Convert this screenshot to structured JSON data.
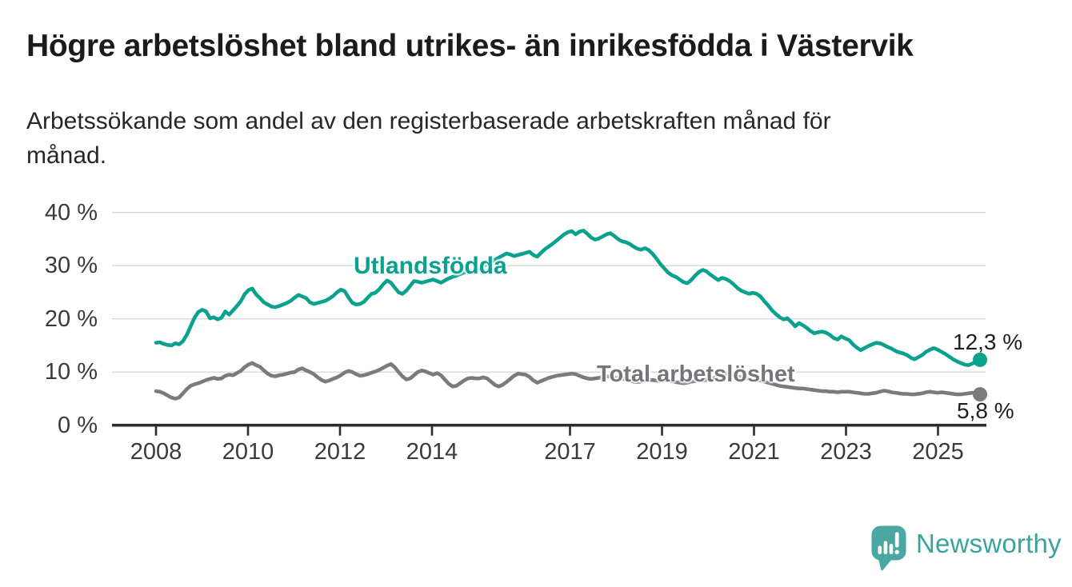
{
  "header": {
    "title": "Högre arbetslöshet bland utrikes- än inrikesfödda i Västervik",
    "subtitle_line1": "Arbetssökande som andel av den registerbaserade arbetskraften månad för",
    "subtitle_line2": "månad."
  },
  "colors": {
    "background": "#ffffff",
    "title_text": "#1b1b1b",
    "tick_text": "#3a3a3a",
    "grid": "#d8d8d8",
    "axis": "#2d2d2d",
    "series_utlandsfodda": "#0aa18f",
    "series_total": "#7a7b7f",
    "total_label_text": "#75767a",
    "value_label_text": "#1f1f1f",
    "logo_bubble": "#4ba7a1",
    "logo_text": "#3ba39b"
  },
  "chart_data": {
    "type": "line",
    "title": "Högre arbetslöshet bland utrikes- än inrikesfödda i Västervik",
    "subtitle": "Arbetssökande som andel av den registerbaserade arbetskraften månad för månad.",
    "x_unit": "month",
    "x_monthly_from": "2008-01",
    "x_monthly_to": "2025-11",
    "ylim": [
      0,
      42
    ],
    "grid": "horizontal",
    "y_ticks": [
      "0 %",
      "10 %",
      "20 %",
      "30 %",
      "40 %"
    ],
    "x_tick_labels": [
      "2008",
      "2010",
      "2012",
      "2014",
      "2017",
      "2019",
      "2021",
      "2023",
      "2025"
    ],
    "x_tick_years": [
      2008,
      2010,
      2012,
      2014,
      2017,
      2019,
      2021,
      2023,
      2025
    ],
    "legend_position": "inline-labels",
    "series": [
      {
        "name": "Utlandsfödda",
        "color": "#0aa18f",
        "end_label": "12,3 %",
        "end_value": 12.3,
        "values": [
          15.5,
          15.6,
          15.3,
          15.1,
          15.0,
          15.4,
          15.2,
          15.8,
          17.0,
          18.6,
          20.2,
          21.3,
          21.7,
          21.4,
          20.1,
          20.3,
          19.9,
          20.2,
          21.4,
          20.8,
          21.6,
          22.4,
          23.3,
          24.6,
          25.4,
          25.7,
          24.6,
          23.9,
          23.1,
          22.7,
          22.3,
          22.2,
          22.4,
          22.7,
          23.0,
          23.4,
          24.0,
          24.5,
          24.2,
          23.9,
          23.1,
          22.8,
          23.0,
          23.2,
          23.4,
          23.8,
          24.3,
          25.0,
          25.5,
          25.2,
          24.0,
          23.0,
          22.7,
          22.8,
          23.2,
          24.0,
          24.7,
          24.9,
          25.6,
          26.5,
          27.2,
          26.8,
          25.9,
          25.0,
          24.7,
          25.3,
          26.2,
          27.1,
          27.0,
          26.8,
          27.0,
          27.2,
          27.4,
          27.1,
          26.8,
          27.2,
          27.6,
          27.9,
          28.1,
          28.4,
          28.7,
          28.9,
          29.0,
          29.2,
          29.5,
          29.9,
          30.3,
          30.7,
          31.1,
          31.5,
          31.9,
          32.3,
          32.1,
          31.8,
          32.0,
          32.2,
          32.4,
          32.6,
          32.0,
          31.7,
          32.4,
          33.1,
          33.6,
          34.1,
          34.7,
          35.3,
          35.9,
          36.3,
          36.5,
          35.9,
          36.4,
          36.6,
          36.0,
          35.3,
          34.9,
          35.1,
          35.5,
          35.9,
          36.1,
          35.6,
          35.0,
          34.6,
          34.4,
          34.1,
          33.6,
          33.2,
          33.0,
          33.3,
          32.9,
          32.2,
          31.3,
          30.3,
          29.5,
          28.7,
          28.2,
          27.9,
          27.4,
          26.9,
          26.7,
          27.3,
          28.1,
          28.8,
          29.2,
          28.9,
          28.3,
          27.8,
          27.3,
          27.7,
          27.5,
          27.1,
          26.5,
          25.8,
          25.3,
          25.0,
          24.7,
          24.9,
          24.7,
          24.2,
          23.3,
          22.5,
          21.6,
          20.9,
          20.3,
          19.9,
          20.1,
          19.4,
          18.6,
          19.2,
          18.8,
          18.3,
          17.7,
          17.3,
          17.5,
          17.6,
          17.4,
          17.0,
          16.4,
          16.1,
          16.7,
          16.3,
          16.0,
          15.2,
          14.6,
          14.1,
          14.5,
          14.9,
          15.2,
          15.5,
          15.4,
          15.1,
          14.7,
          14.4,
          14.0,
          13.7,
          13.5,
          13.2,
          12.7,
          12.4,
          12.8,
          13.2,
          13.8,
          14.2,
          14.5,
          14.2,
          13.8,
          13.4,
          12.9,
          12.4,
          12.0,
          11.7,
          11.4,
          11.3,
          11.6,
          11.9,
          12.3
        ]
      },
      {
        "name": "Total arbetslöshet",
        "color": "#7a7b7f",
        "end_label": "5,8 %",
        "end_value": 5.8,
        "values": [
          6.4,
          6.3,
          6.0,
          5.6,
          5.2,
          5.0,
          5.2,
          6.0,
          6.8,
          7.4,
          7.7,
          7.9,
          8.2,
          8.5,
          8.7,
          8.9,
          8.7,
          8.8,
          9.3,
          9.5,
          9.4,
          9.8,
          10.2,
          10.9,
          11.4,
          11.7,
          11.3,
          11.0,
          10.3,
          9.7,
          9.3,
          9.2,
          9.4,
          9.5,
          9.7,
          9.9,
          10.0,
          10.5,
          10.7,
          10.3,
          10.0,
          9.6,
          9.0,
          8.5,
          8.2,
          8.4,
          8.7,
          9.0,
          9.4,
          9.9,
          10.2,
          10.0,
          9.6,
          9.3,
          9.4,
          9.6,
          9.9,
          10.1,
          10.4,
          10.8,
          11.2,
          11.5,
          10.9,
          10.0,
          9.2,
          8.6,
          8.8,
          9.4,
          10.0,
          10.3,
          10.1,
          9.8,
          9.5,
          9.8,
          9.4,
          8.6,
          7.8,
          7.3,
          7.4,
          7.9,
          8.4,
          8.8,
          8.9,
          8.8,
          8.8,
          9.0,
          8.8,
          8.2,
          7.6,
          7.3,
          7.6,
          8.1,
          8.7,
          9.3,
          9.7,
          9.6,
          9.5,
          9.1,
          8.4,
          8.0,
          8.3,
          8.6,
          8.9,
          9.1,
          9.3,
          9.4,
          9.5,
          9.6,
          9.7,
          9.6,
          9.3,
          9.0,
          8.8,
          8.7,
          8.8,
          8.9,
          9.1,
          9.2,
          9.1,
          9.0,
          8.9,
          8.8,
          8.6,
          8.4,
          8.2,
          8.1,
          8.2,
          8.4,
          8.5,
          8.5,
          8.4,
          8.3,
          8.4,
          8.4,
          8.3,
          8.1,
          8.0,
          7.9,
          8.0,
          8.2,
          8.3,
          8.4,
          8.4,
          8.5,
          8.7,
          8.9,
          9.3,
          9.6,
          9.7,
          9.6,
          9.4,
          9.2,
          9.0,
          8.8,
          8.7,
          8.6,
          8.5,
          8.4,
          8.2,
          8.0,
          7.8,
          7.6,
          7.4,
          7.3,
          7.2,
          7.1,
          7.0,
          6.9,
          6.9,
          6.8,
          6.7,
          6.6,
          6.5,
          6.4,
          6.4,
          6.3,
          6.3,
          6.2,
          6.3,
          6.3,
          6.3,
          6.2,
          6.1,
          6.0,
          5.9,
          5.9,
          6.0,
          6.1,
          6.3,
          6.5,
          6.4,
          6.2,
          6.1,
          6.0,
          5.9,
          5.9,
          5.8,
          5.8,
          5.9,
          6.0,
          6.2,
          6.3,
          6.2,
          6.1,
          6.2,
          6.1,
          6.0,
          5.9,
          5.8,
          5.8,
          5.9,
          6.0,
          6.1,
          5.9,
          5.8
        ]
      }
    ]
  },
  "footer": {
    "brand": "Newsworthy"
  }
}
